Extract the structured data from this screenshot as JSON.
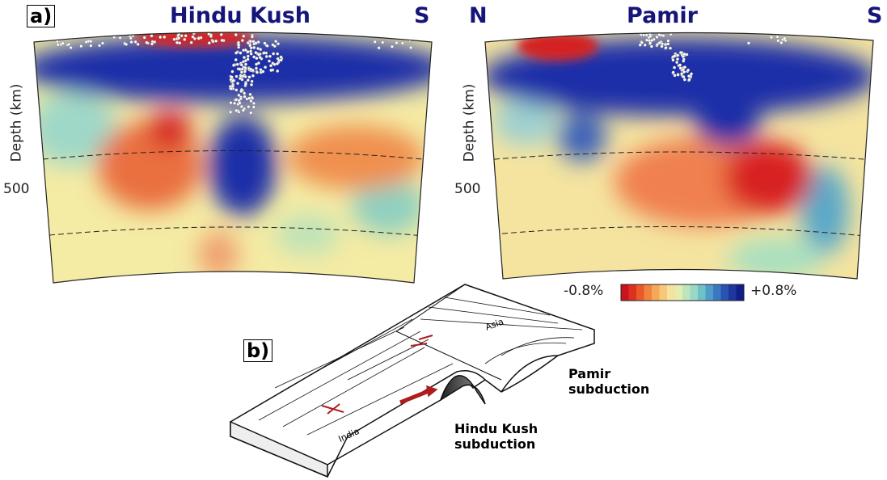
{
  "figure": {
    "panel_a": {
      "label": "a)",
      "left_section": {
        "title": "Hindu Kush",
        "right_end": "S",
        "y_axis_label": "Depth (km)",
        "y_tick": "500"
      },
      "right_section": {
        "left_end": "N",
        "title": "Pamir",
        "right_end": "S",
        "y_axis_label": "Depth (km)",
        "y_tick": "500"
      },
      "colorbar": {
        "min_label": "-0.8%",
        "max_label": "+0.8%"
      }
    },
    "panel_b": {
      "label": "b)",
      "plate_labels": [
        "Asia",
        "India"
      ],
      "annotations": [
        "Pamir subduction",
        "Hindu Kush subduction"
      ]
    }
  }
}
